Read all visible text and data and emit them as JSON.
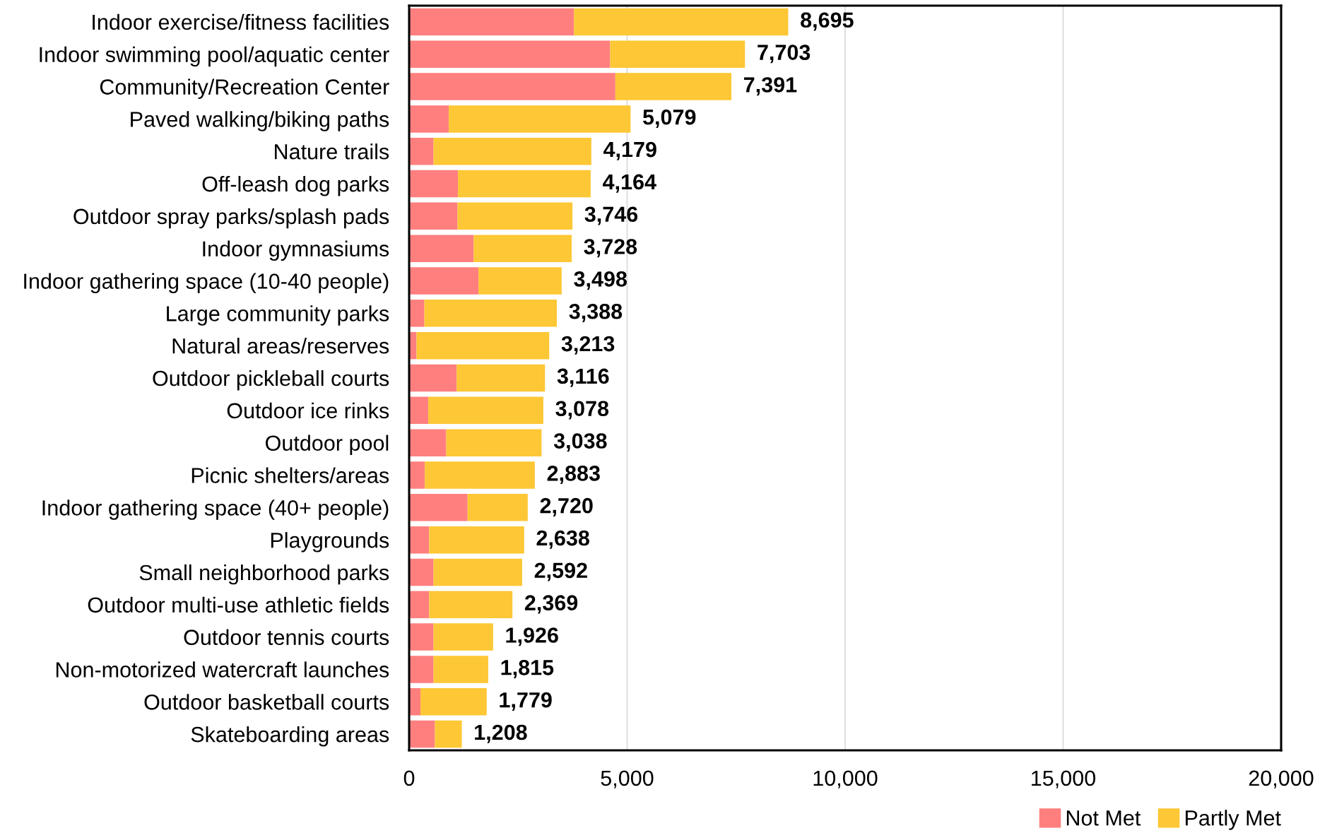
{
  "chart_data": {
    "type": "bar",
    "orientation": "horizontal",
    "stacked": true,
    "categories": [
      "Indoor exercise/fitness facilities",
      "Indoor swimming pool/aquatic center",
      "Community/Recreation Center",
      "Paved walking/biking paths",
      "Nature trails",
      "Off-leash dog parks",
      "Outdoor spray parks/splash pads",
      "Indoor gymnasiums",
      "Indoor gathering space (10-40 people)",
      "Large community parks",
      "Natural areas/reserves",
      "Outdoor pickleball courts",
      "Outdoor ice rinks",
      "Outdoor pool",
      "Picnic shelters/areas",
      "Indoor gathering space (40+ people)",
      "Playgrounds",
      "Small neighborhood parks",
      "Outdoor multi-use athletic fields",
      "Outdoor tennis courts",
      "Non-motorized watercraft launches",
      "Outdoor basketball courts",
      "Skateboarding areas"
    ],
    "series": [
      {
        "name": "Not Met",
        "color": "#ff7f7f",
        "values": [
          3780,
          4610,
          4730,
          910,
          560,
          1120,
          1110,
          1480,
          1590,
          350,
          170,
          1090,
          440,
          850,
          360,
          1340,
          460,
          560,
          460,
          560,
          560,
          260,
          590
        ]
      },
      {
        "name": "Partly Met",
        "color": "#fdc735",
        "values": [
          4915,
          3093,
          2661,
          4169,
          3619,
          3044,
          2636,
          2248,
          1908,
          3038,
          3043,
          2026,
          2638,
          2188,
          2523,
          1380,
          2178,
          2032,
          1909,
          1366,
          1255,
          1519,
          618
        ]
      }
    ],
    "totals": [
      "8,695",
      "7,703",
      "7,391",
      "5,079",
      "4,179",
      "4,164",
      "3,746",
      "3,728",
      "3,498",
      "3,388",
      "3,213",
      "3,116",
      "3,078",
      "3,038",
      "2,883",
      "2,720",
      "2,638",
      "2,592",
      "2,369",
      "1,926",
      "1,815",
      "1,779",
      "1,208"
    ],
    "xlim": [
      0,
      20000
    ],
    "xticks": [
      0,
      {
        "value": 5000,
        "label": "5,000"
      },
      {
        "value": 10000,
        "label": "10,000"
      },
      {
        "value": 15000,
        "label": "15,000"
      },
      {
        "value": 20000,
        "label": "20,000"
      }
    ],
    "grid": "x",
    "legend": "bottom right"
  }
}
